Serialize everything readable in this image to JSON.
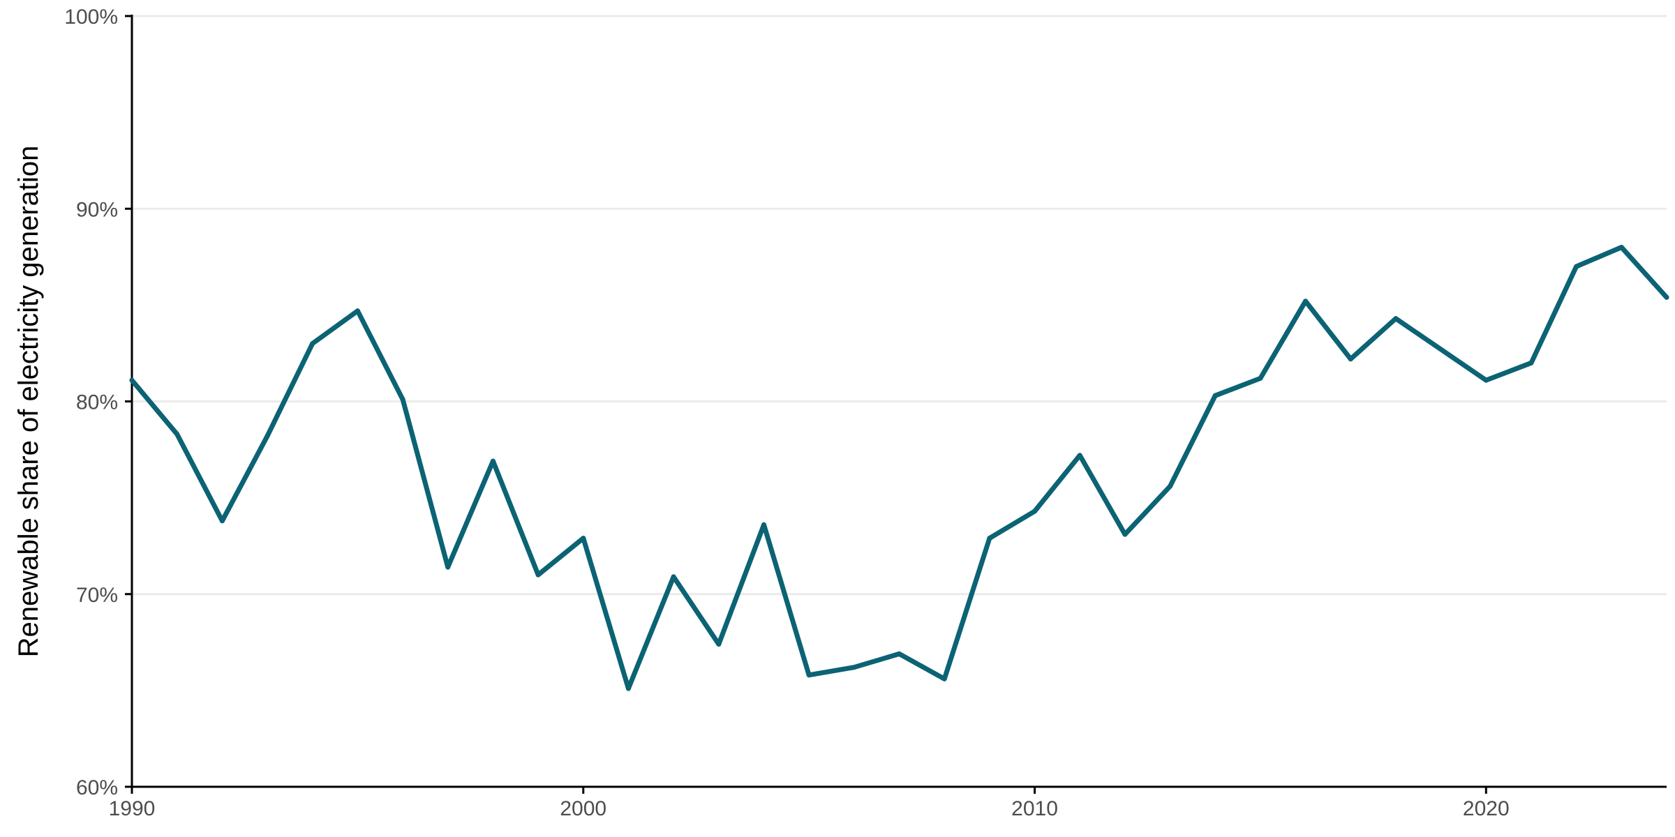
{
  "chart_data": {
    "type": "line",
    "title": "",
    "xlabel": "",
    "ylabel": "Renewable share of electricity generation",
    "xlim": [
      1990,
      2024
    ],
    "ylim": [
      60,
      100
    ],
    "x_ticks": [
      1990,
      2000,
      2010,
      2020
    ],
    "x_tick_labels": [
      "1990",
      "2000",
      "2010",
      "2020"
    ],
    "y_ticks": [
      60,
      70,
      80,
      90,
      100
    ],
    "y_tick_labels": [
      "60%",
      "70%",
      "80%",
      "90%",
      "100%"
    ],
    "grid": "horizontal major",
    "legend": "none",
    "series": [
      {
        "x": [
          1990,
          1991,
          1992,
          1993,
          1994,
          1995,
          1996,
          1997,
          1998,
          1999,
          2000,
          2001,
          2002,
          2003,
          2004,
          2005,
          2006,
          2007,
          2008,
          2009,
          2010,
          2011,
          2012,
          2013,
          2014,
          2015,
          2016,
          2017,
          2018,
          2019,
          2020,
          2021,
          2022,
          2023,
          2024
        ],
        "values": [
          81.1,
          78.3,
          73.8,
          78.2,
          83.0,
          84.7,
          80.1,
          71.4,
          76.9,
          71.0,
          72.9,
          65.1,
          70.9,
          67.4,
          73.6,
          65.8,
          66.2,
          66.9,
          65.6,
          72.9,
          74.3,
          77.2,
          73.1,
          75.6,
          80.3,
          81.2,
          85.2,
          82.2,
          84.3,
          82.7,
          81.1,
          82.0,
          87.0,
          88.0,
          85.4
        ]
      }
    ],
    "colors": {
      "line": "#0b6374",
      "grid": "#ebebeb",
      "axis": "#000000",
      "tick_text": "#4d4d4d",
      "title_text": "#000000"
    }
  }
}
